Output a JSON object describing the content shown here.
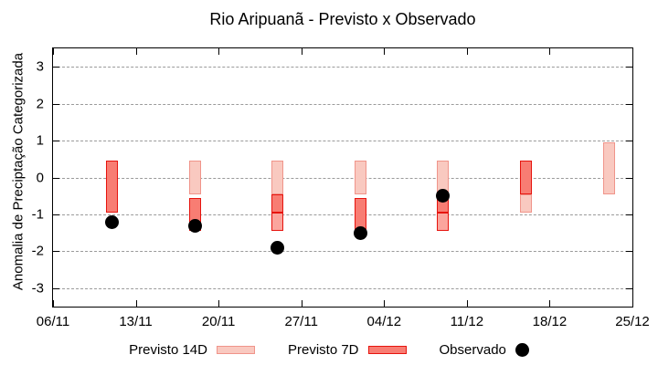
{
  "chart_data": {
    "type": "bar",
    "title": "Rio Aripuanã - Previsto x Observado",
    "ylabel": "Anomalia de Preciptação Categorizada",
    "xlabel": "",
    "ylim": [
      -3.5,
      3.5
    ],
    "grid": true,
    "legend_position": "bottom",
    "yticks": [
      {
        "v": 3,
        "label": "3"
      },
      {
        "v": 2,
        "label": "2"
      },
      {
        "v": 1,
        "label": "1"
      },
      {
        "v": 0,
        "label": "0"
      },
      {
        "v": -1,
        "label": "-1"
      },
      {
        "v": -2,
        "label": "-2"
      },
      {
        "v": -3,
        "label": "-3"
      }
    ],
    "x_domain_days": 49,
    "xticks": [
      {
        "day": 0,
        "label": "06/11"
      },
      {
        "day": 7,
        "label": "13/11"
      },
      {
        "day": 14,
        "label": "20/11"
      },
      {
        "day": 21,
        "label": "27/11"
      },
      {
        "day": 28,
        "label": "04/12"
      },
      {
        "day": 35,
        "label": "11/12"
      },
      {
        "day": 42,
        "label": "18/12"
      },
      {
        "day": 49,
        "label": "25/12"
      }
    ],
    "groups": [
      {
        "date": "11/11",
        "day": 5,
        "segments": [
          {
            "type": "7d",
            "from": 0.45,
            "to": -0.95
          }
        ],
        "observed": -1.2
      },
      {
        "date": "18/11",
        "day": 12,
        "segments": [
          {
            "type": "14d",
            "from": 0.45,
            "to": -0.45
          },
          {
            "type": "7d",
            "from": -0.55,
            "to": -1.45
          }
        ],
        "observed": -1.3
      },
      {
        "date": "25/11",
        "day": 19,
        "segments": [
          {
            "type": "14d",
            "from": 0.45,
            "to": -0.45
          },
          {
            "type": "7d",
            "from": -0.45,
            "to": -0.95
          },
          {
            "type": "7dl",
            "from": -0.95,
            "to": -1.45
          }
        ],
        "observed": -1.9
      },
      {
        "date": "02/12",
        "day": 26,
        "segments": [
          {
            "type": "14d",
            "from": 0.45,
            "to": -0.45
          },
          {
            "type": "7d",
            "from": -0.55,
            "to": -1.45
          }
        ],
        "observed": -1.5
      },
      {
        "date": "09/12",
        "day": 33,
        "segments": [
          {
            "type": "14d",
            "from": 0.45,
            "to": -0.55
          },
          {
            "type": "7d",
            "from": -0.55,
            "to": -0.95
          },
          {
            "type": "7dl",
            "from": -0.95,
            "to": -1.45
          }
        ],
        "observed": -0.5
      },
      {
        "date": "16/12",
        "day": 40,
        "segments": [
          {
            "type": "7d",
            "from": 0.45,
            "to": -0.45
          },
          {
            "type": "14d",
            "from": -0.45,
            "to": -0.95
          }
        ],
        "observed": null
      },
      {
        "date": "23/12",
        "day": 47,
        "segments": [
          {
            "type": "14d",
            "from": 0.95,
            "to": -0.45
          }
        ],
        "observed": null
      }
    ],
    "legend": [
      {
        "label": "Previsto 14D",
        "swatch": "14d"
      },
      {
        "label": "Previsto 7D",
        "swatch": "7d"
      },
      {
        "label": "Observado",
        "swatch": "dot"
      }
    ],
    "colors": {
      "pink_fill": "#f9c9c0",
      "pink_border": "#f0948a",
      "red_fill": "#f87d73",
      "red_border": "#e6140e",
      "red_light_fill": "#fba59d",
      "observed_dot": "#000000",
      "grid": "#9a9a9a",
      "axis": "#000000"
    }
  }
}
